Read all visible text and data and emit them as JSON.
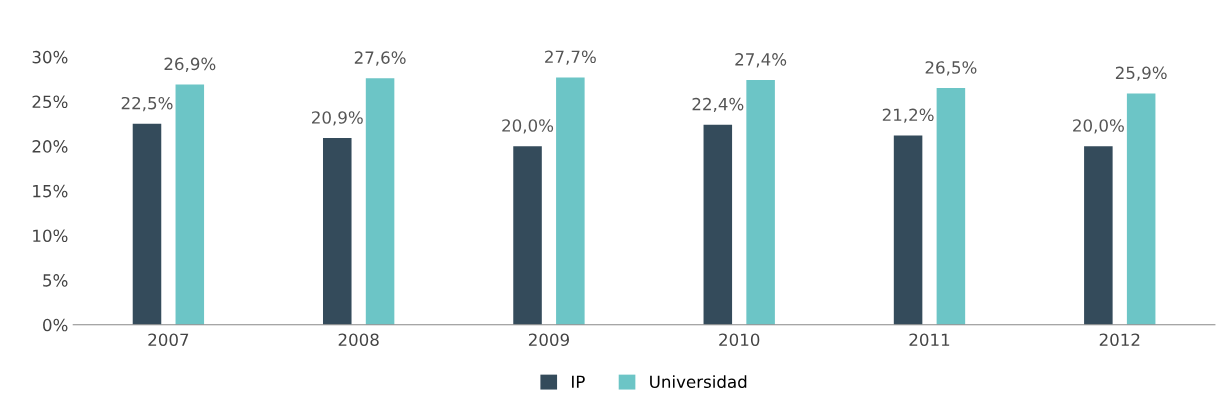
{
  "chart_data": {
    "type": "bar",
    "categories": [
      "2007",
      "2008",
      "2009",
      "2010",
      "2011",
      "2012"
    ],
    "series": [
      {
        "name": "IP",
        "color": "#344b5b",
        "values": [
          22.5,
          20.9,
          20.0,
          22.4,
          21.2,
          20.0
        ],
        "value_labels": [
          "22,5%",
          "20,9%",
          "20,0%",
          "22,4%",
          "21,2%",
          "20,0%"
        ]
      },
      {
        "name": "Universidad",
        "color": "#6cc5c6",
        "values": [
          26.9,
          27.6,
          27.7,
          27.4,
          26.5,
          25.9
        ],
        "value_labels": [
          "26,9%",
          "27,6%",
          "27,7%",
          "27,4%",
          "26,5%",
          "25,9%"
        ]
      }
    ],
    "ylim": [
      0,
      30
    ],
    "yticks": [
      {
        "value": 0,
        "label": "0%"
      },
      {
        "value": 5,
        "label": "5%"
      },
      {
        "value": 10,
        "label": "10%"
      },
      {
        "value": 15,
        "label": "15%"
      },
      {
        "value": 20,
        "label": "20%"
      },
      {
        "value": 25,
        "label": "25%"
      },
      {
        "value": 30,
        "label": "30%"
      }
    ],
    "grid": false,
    "legend": "bottom"
  }
}
